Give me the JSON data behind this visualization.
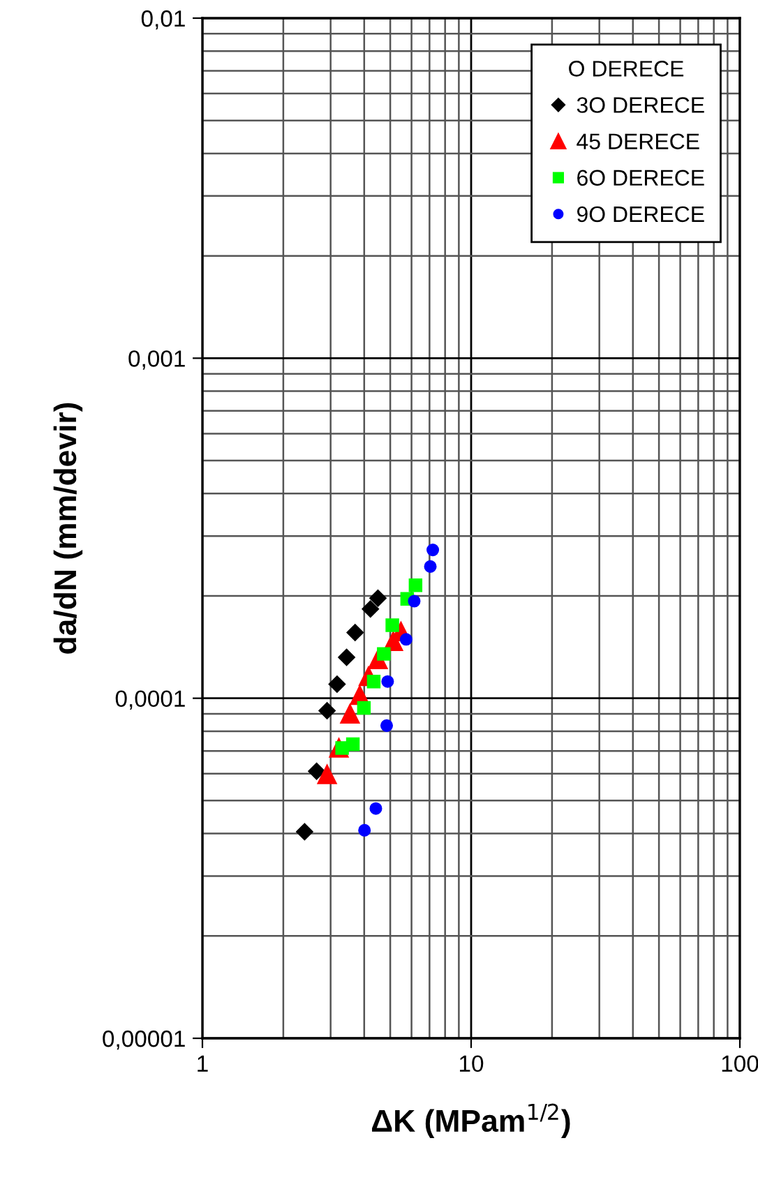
{
  "chart_data": {
    "type": "scatter",
    "xlabel": "ΔK (MPam$^{1/2}$)",
    "ylabel": "da/dN (mm/devir)",
    "log": "xy",
    "grid": true,
    "legend": "top right",
    "legend_title": "O DERECE",
    "xlim": [
      1,
      100
    ],
    "xticks": [
      1,
      10,
      100
    ],
    "ylim": [
      1e-05,
      0.01
    ],
    "yticks": [
      {
        "value": 1e-05,
        "label": "0,00001"
      },
      {
        "value": 0.0001,
        "label": "0,0001"
      },
      {
        "value": 0.001,
        "label": "0,001"
      },
      {
        "value": 0.01,
        "label": "0,01"
      }
    ],
    "series": [
      {
        "name": "3O DERECE",
        "color": "#000000",
        "marker": "diamond",
        "x": [
          2.4,
          2.66,
          2.91,
          3.17,
          3.44,
          3.7,
          4.22,
          4.5
        ],
        "values": [
          4.05e-05,
          6.1e-05,
          9.19e-05,
          0.00011,
          0.000132,
          0.000156,
          0.000183,
          0.000197
        ]
      },
      {
        "name": "45 DERECE",
        "color": "#ff0000",
        "marker": "triangle",
        "x": [
          2.91,
          3.22,
          3.54,
          3.85,
          4.15,
          4.5,
          5.13,
          5.48
        ],
        "values": [
          5.97e-05,
          7.14e-05,
          8.99e-05,
          0.000102,
          0.000116,
          0.00013,
          0.000147,
          0.000157
        ]
      },
      {
        "name": "6O DERECE",
        "color": "#00ff00",
        "marker": "square",
        "x": [
          3.31,
          3.63,
          3.99,
          4.34,
          4.73,
          5.09,
          5.78,
          6.21
        ],
        "values": [
          7.14e-05,
          7.33e-05,
          9.37e-05,
          0.000112,
          0.000135,
          0.000164,
          0.000196,
          0.000215
        ]
      },
      {
        "name": "9O DERECE",
        "color": "#0000ff",
        "marker": "circle",
        "x": [
          4.01,
          4.42,
          4.85,
          4.89,
          5.73,
          6.14,
          7.05,
          7.2
        ],
        "values": [
          4.09e-05,
          4.74e-05,
          8.31e-05,
          0.000112,
          0.000149,
          0.000193,
          0.000244,
          0.000273
        ]
      }
    ]
  }
}
